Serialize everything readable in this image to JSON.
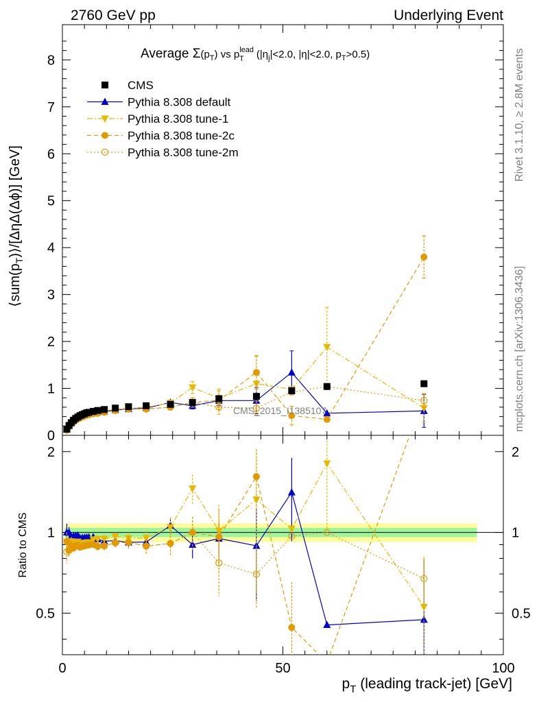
{
  "chart_data": {
    "type": "scatter",
    "header_left": "2760 GeV pp",
    "header_right": "Underlying Event",
    "title": {
      "prefix": "Average ",
      "sigma": "Σ",
      "mid": " vs ",
      "cut1": "|<2.0, |",
      "cut2": "|<2.0, ",
      "cut3": ">0.5)"
    },
    "ylabel": "⟨sum(p_T)⟩/[ΔηΔ(Δϕ)] [GeV]",
    "ylabel_text": "⟨sum(p",
    "ylabel_text2": ")⟩/[ΔηΔ(Δϕ)] [GeV]",
    "xlabel": "p_T (leading track-jet) [GeV]",
    "xlabel_text": " (leading track-jet) [GeV]",
    "ratio_ylabel": "Ratio to CMS",
    "side_text_top": "Rivet 3.1.10, ≥ 2.8M events",
    "side_text_bottom": "mcplots.cern.ch [arXiv:1306.3436]",
    "watermark": "CMS_2015_I1385107",
    "xlim": [
      0,
      100
    ],
    "ylim_main": [
      0,
      8.75
    ],
    "ylim_ratio": [
      0.35,
      2.3
    ],
    "yscale_ratio": "log",
    "x_ticks": [
      0,
      50,
      100
    ],
    "y_ticks_main": [
      0,
      1,
      2,
      3,
      4,
      5,
      6,
      7,
      8
    ],
    "y_ticks_ratio": [
      0.5,
      1,
      2
    ],
    "legend": [
      {
        "name": "CMS",
        "marker": "square",
        "color": "#000000",
        "line": "none"
      },
      {
        "name": "Pythia 8.308 default",
        "marker": "triangle-up",
        "color": "#0000cc",
        "line": "solid"
      },
      {
        "name": "Pythia 8.308 tune-1",
        "marker": "triangle-down",
        "color": "#e8b800",
        "line": "dashdot"
      },
      {
        "name": "Pythia 8.308 tune-2c",
        "marker": "circle",
        "color": "#e09a00",
        "line": "dashed"
      },
      {
        "name": "Pythia 8.308 tune-2m",
        "marker": "circle-open",
        "color": "#e09a00",
        "line": "dotted"
      }
    ],
    "x": [
      1.0,
      1.5,
      2.0,
      2.5,
      3.0,
      3.5,
      4.0,
      4.5,
      5.0,
      5.5,
      6.0,
      7.0,
      8.0,
      9.5,
      12.0,
      15.0,
      19.0,
      24.5,
      29.5,
      35.5,
      44.0,
      52.0,
      60.0,
      82.0
    ],
    "series": [
      {
        "name": "CMS",
        "values": [
          0.13,
          0.21,
          0.27,
          0.32,
          0.36,
          0.39,
          0.42,
          0.44,
          0.46,
          0.48,
          0.49,
          0.51,
          0.53,
          0.55,
          0.58,
          0.61,
          0.63,
          0.66,
          0.7,
          0.78,
          0.83,
          0.95,
          1.04,
          1.1
        ]
      },
      {
        "name": "Pythia 8.308 default",
        "values": [
          0.13,
          0.21,
          0.26,
          0.31,
          0.35,
          0.38,
          0.4,
          0.42,
          0.44,
          0.46,
          0.47,
          0.49,
          0.5,
          0.51,
          0.54,
          0.56,
          0.58,
          0.7,
          0.63,
          0.74,
          0.74,
          1.34,
          0.47,
          0.52
        ],
        "err": [
          0.01,
          0.01,
          0.01,
          0.01,
          0.01,
          0.01,
          0.01,
          0.01,
          0.01,
          0.01,
          0.01,
          0.01,
          0.01,
          0.02,
          0.02,
          0.02,
          0.03,
          0.05,
          0.07,
          0.11,
          0.28,
          0.46,
          0.0,
          0.35
        ]
      },
      {
        "name": "Pythia 8.308 tune-1",
        "values": [
          0.12,
          0.19,
          0.25,
          0.29,
          0.33,
          0.36,
          0.38,
          0.4,
          0.42,
          0.44,
          0.45,
          0.48,
          0.5,
          0.52,
          0.56,
          0.58,
          0.6,
          0.69,
          1.02,
          0.79,
          1.1,
          0.98,
          1.88,
          0.58
        ],
        "err": [
          0.01,
          0.01,
          0.01,
          0.01,
          0.01,
          0.01,
          0.01,
          0.01,
          0.01,
          0.01,
          0.01,
          0.01,
          0.02,
          0.02,
          0.02,
          0.03,
          0.04,
          0.06,
          0.13,
          0.2,
          0.6,
          0.0,
          0.85,
          0.3
        ]
      },
      {
        "name": "Pythia 8.308 tune-2c",
        "values": [
          0.12,
          0.18,
          0.24,
          0.28,
          0.32,
          0.35,
          0.37,
          0.39,
          0.41,
          0.43,
          0.44,
          0.46,
          0.47,
          0.49,
          0.53,
          0.56,
          0.56,
          0.6,
          0.7,
          0.75,
          1.34,
          0.42,
          0.34,
          3.8
        ],
        "err": [
          0.01,
          0.01,
          0.01,
          0.01,
          0.01,
          0.01,
          0.01,
          0.01,
          0.01,
          0.01,
          0.01,
          0.01,
          0.02,
          0.02,
          0.02,
          0.03,
          0.04,
          0.06,
          0.1,
          0.2,
          0.35,
          0.2,
          0.0,
          0.45
        ]
      },
      {
        "name": "Pythia 8.308 tune-2m",
        "values": [
          0.11,
          0.18,
          0.24,
          0.28,
          0.32,
          0.35,
          0.37,
          0.39,
          0.41,
          0.43,
          0.44,
          0.46,
          0.47,
          0.49,
          0.53,
          0.56,
          0.56,
          0.6,
          0.7,
          0.6,
          0.58,
          0.92,
          1.04,
          0.74
        ],
        "err": [
          0.01,
          0.01,
          0.01,
          0.01,
          0.01,
          0.01,
          0.01,
          0.01,
          0.01,
          0.01,
          0.01,
          0.01,
          0.02,
          0.02,
          0.02,
          0.03,
          0.04,
          0.06,
          0.1,
          0.15,
          0.15,
          0.0,
          0.0,
          0.15
        ]
      }
    ],
    "ratio_band_inner": 0.04,
    "ratio_band_outer": 0.08
  }
}
